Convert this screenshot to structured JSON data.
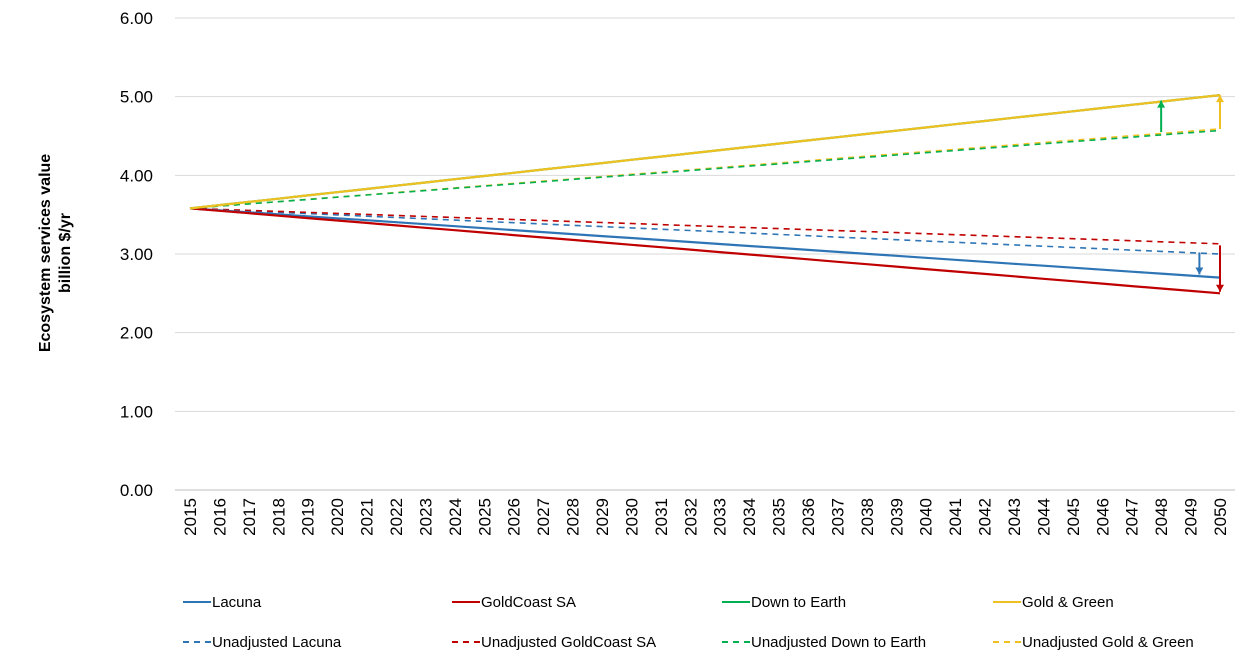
{
  "chart_data": {
    "type": "line",
    "title": "",
    "xlabel": "",
    "ylabel_line1": "Ecosystem services value",
    "ylabel_line2": "billion $/yr",
    "ylim": [
      0,
      6
    ],
    "yticks": [
      "0.00",
      "1.00",
      "2.00",
      "3.00",
      "4.00",
      "5.00",
      "6.00"
    ],
    "x": [
      2015,
      2016,
      2017,
      2018,
      2019,
      2020,
      2021,
      2022,
      2023,
      2024,
      2025,
      2026,
      2027,
      2028,
      2029,
      2030,
      2031,
      2032,
      2033,
      2034,
      2035,
      2036,
      2037,
      2038,
      2039,
      2040,
      2041,
      2042,
      2043,
      2044,
      2045,
      2046,
      2047,
      2048,
      2049,
      2050
    ],
    "grid": "horizontal",
    "legend_position": "bottom",
    "series": [
      {
        "name": "Lacuna",
        "color": "#2e75b6",
        "dash": "solid",
        "start": 3.58,
        "end": 2.7
      },
      {
        "name": "GoldCoast SA",
        "color": "#c00000",
        "dash": "solid",
        "start": 3.58,
        "end": 2.5
      },
      {
        "name": "Down to Earth",
        "color": "#00b050",
        "dash": "solid",
        "start": 3.58,
        "end": 5.02
      },
      {
        "name": "Gold & Green",
        "color": "#f0c020",
        "dash": "solid",
        "start": 3.58,
        "end": 5.02
      },
      {
        "name": "Unadjusted Lacuna",
        "color": "#2e75b6",
        "dash": "dashed",
        "start": 3.58,
        "end": 3.0
      },
      {
        "name": "Unadjusted GoldCoast SA",
        "color": "#c00000",
        "dash": "dashed",
        "start": 3.58,
        "end": 3.13
      },
      {
        "name": "Unadjusted Down to Earth",
        "color": "#00b050",
        "dash": "dashed",
        "start": 3.58,
        "end": 4.57
      },
      {
        "name": "Unadjusted Gold & Green",
        "color": "#f0c020",
        "dash": "dashed",
        "start": 3.58,
        "end": 4.59
      }
    ],
    "annotations": [
      {
        "type": "arrow",
        "x": 2048,
        "from": 4.55,
        "to": 4.95,
        "color": "#00b050"
      },
      {
        "type": "arrow",
        "x": 2050,
        "from": 4.59,
        "to": 5.02,
        "color": "#f0c020"
      },
      {
        "type": "arrow",
        "x": 2049.3,
        "from": 3.02,
        "to": 2.74,
        "color": "#2e75b6"
      },
      {
        "type": "arrow",
        "x": 2050,
        "from": 3.11,
        "to": 2.52,
        "color": "#c00000"
      }
    ]
  }
}
